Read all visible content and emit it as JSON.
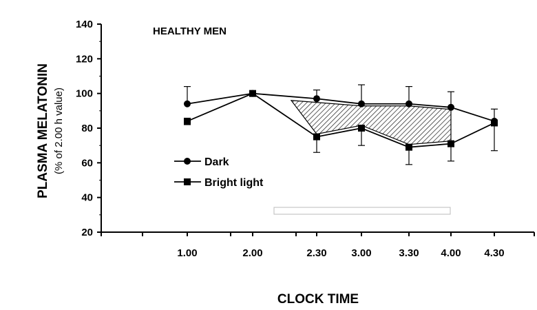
{
  "chart_data": {
    "type": "line",
    "title": "HEALTHY MEN",
    "xlabel": "CLOCK TIME",
    "ylabel": "PLASMA MELATONIN",
    "ylabel_sub": "(% of 2.00 h value)",
    "categories": [
      "1.00",
      "2.00",
      "2.30",
      "3.00",
      "3.30",
      "4.00",
      "4.30"
    ],
    "ylim": [
      20,
      140
    ],
    "yticks": [
      20,
      40,
      60,
      80,
      100,
      120,
      140
    ],
    "grid": false,
    "legend_position": "left",
    "shaded_region": "between series from 2.30 to 4.00",
    "series": [
      {
        "name": "Dark",
        "marker": "circle",
        "values": [
          94,
          100,
          97,
          94,
          94,
          92,
          84
        ],
        "error": [
          10,
          0,
          5,
          11,
          10,
          9,
          7
        ]
      },
      {
        "name": "Bright light",
        "marker": "square",
        "values": [
          84,
          100,
          75,
          80,
          69,
          71,
          83
        ],
        "error": [
          2,
          0,
          9,
          10,
          10,
          10,
          16
        ]
      }
    ]
  }
}
